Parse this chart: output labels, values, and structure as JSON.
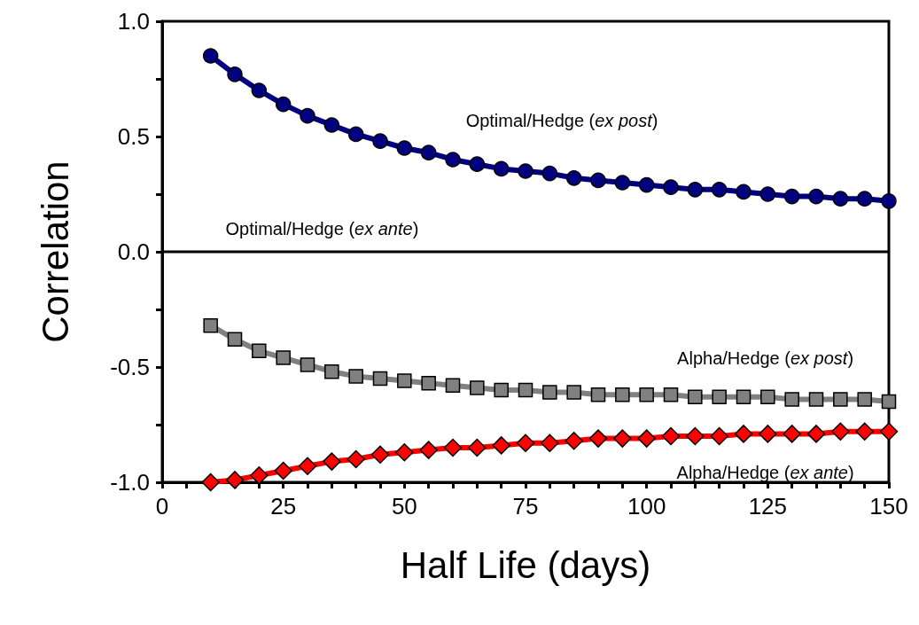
{
  "chart_data": {
    "type": "line",
    "xlabel": "Half Life (days)",
    "ylabel": "Correlation",
    "x": [
      10,
      15,
      20,
      25,
      30,
      35,
      40,
      45,
      50,
      55,
      60,
      65,
      70,
      75,
      80,
      85,
      90,
      95,
      100,
      105,
      110,
      115,
      120,
      125,
      130,
      135,
      140,
      145,
      150
    ],
    "series": [
      {
        "name": "Optimal/Hedge (ex post)",
        "color": "#000080",
        "marker": "circle",
        "values": [
          0.85,
          0.77,
          0.7,
          0.64,
          0.59,
          0.55,
          0.51,
          0.48,
          0.45,
          0.43,
          0.4,
          0.38,
          0.36,
          0.35,
          0.34,
          0.32,
          0.31,
          0.3,
          0.29,
          0.28,
          0.27,
          0.27,
          0.26,
          0.25,
          0.24,
          0.24,
          0.23,
          0.23,
          0.22
        ]
      },
      {
        "name": "Optimal/Hedge (ex ante)",
        "color": "#000000",
        "marker": "none",
        "x": [
          0,
          150
        ],
        "values": [
          0,
          0
        ]
      },
      {
        "name": "Alpha/Hedge (ex post)",
        "color": "#808080",
        "marker": "square",
        "values": [
          -0.32,
          -0.38,
          -0.43,
          -0.46,
          -0.49,
          -0.52,
          -0.54,
          -0.55,
          -0.56,
          -0.57,
          -0.58,
          -0.59,
          -0.6,
          -0.6,
          -0.61,
          -0.61,
          -0.62,
          -0.62,
          -0.62,
          -0.62,
          -0.63,
          -0.63,
          -0.63,
          -0.63,
          -0.64,
          -0.64,
          -0.64,
          -0.64,
          -0.65
        ]
      },
      {
        "name": "Alpha/Hedge (ex ante)",
        "color": "#ff0000",
        "marker": "diamond",
        "values": [
          -1.0,
          -0.99,
          -0.97,
          -0.95,
          -0.93,
          -0.91,
          -0.9,
          -0.88,
          -0.87,
          -0.86,
          -0.85,
          -0.85,
          -0.84,
          -0.83,
          -0.83,
          -0.82,
          -0.81,
          -0.81,
          -0.81,
          -0.8,
          -0.8,
          -0.8,
          -0.79,
          -0.79,
          -0.79,
          -0.79,
          -0.78,
          -0.78,
          -0.78
        ]
      }
    ],
    "xlim": [
      0,
      150
    ],
    "xticks": [
      0,
      {
        "value": 5,
        "label": null
      },
      {
        "value": 10,
        "label": null
      },
      {
        "value": 15,
        "label": null
      },
      {
        "value": 20,
        "label": null
      },
      25,
      {
        "value": 30,
        "label": null
      },
      {
        "value": 35,
        "label": null
      },
      {
        "value": 40,
        "label": null
      },
      {
        "value": 45,
        "label": null
      },
      50,
      {
        "value": 55,
        "label": null
      },
      {
        "value": 60,
        "label": null
      },
      {
        "value": 65,
        "label": null
      },
      {
        "value": 70,
        "label": null
      },
      75,
      {
        "value": 80,
        "label": null
      },
      {
        "value": 85,
        "label": null
      },
      {
        "value": 90,
        "label": null
      },
      {
        "value": 95,
        "label": null
      },
      100,
      {
        "value": 105,
        "label": null
      },
      {
        "value": 110,
        "label": null
      },
      {
        "value": 115,
        "label": null
      },
      {
        "value": 120,
        "label": null
      },
      125,
      {
        "value": 130,
        "label": null
      },
      {
        "value": 135,
        "label": null
      },
      {
        "value": 140,
        "label": null
      },
      {
        "value": 145,
        "label": null
      },
      150
    ],
    "ylim": [
      -1,
      1
    ],
    "yticks": [
      {
        "value": -1,
        "label": "-1.0"
      },
      {
        "value": -0.75,
        "label": null
      },
      {
        "value": -0.5,
        "label": "-0.5"
      },
      {
        "value": -0.25,
        "label": null
      },
      {
        "value": 0,
        "label": "0.0"
      },
      {
        "value": 0.25,
        "label": null
      },
      {
        "value": 0.5,
        "label": "0.5"
      },
      {
        "value": 0.75,
        "label": null
      },
      {
        "value": 1,
        "label": "1.0"
      }
    ],
    "grid": false
  }
}
